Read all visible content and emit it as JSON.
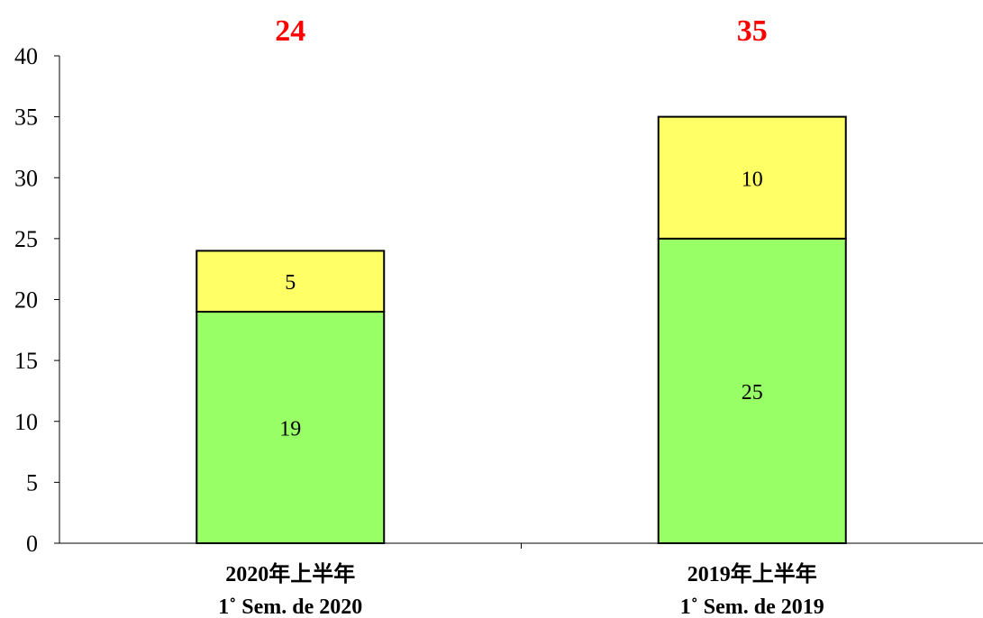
{
  "chart_data": {
    "type": "bar",
    "stacked": true,
    "categories": [
      [
        "2020年上半年",
        "1˚ Sem. de 2020"
      ],
      [
        "2019年上半年",
        "1˚ Sem. de 2019"
      ]
    ],
    "series": [
      {
        "values": [
          19,
          25
        ],
        "color": "#99ff66"
      },
      {
        "values": [
          5,
          10
        ],
        "color": "#ffff66"
      }
    ],
    "totals": [
      24,
      35
    ],
    "total_color": "#ff0000",
    "ylim": [
      0,
      40
    ],
    "yticks": [
      0,
      5,
      10,
      15,
      20,
      25,
      30,
      35,
      40
    ],
    "grid": false,
    "legend": "none"
  }
}
